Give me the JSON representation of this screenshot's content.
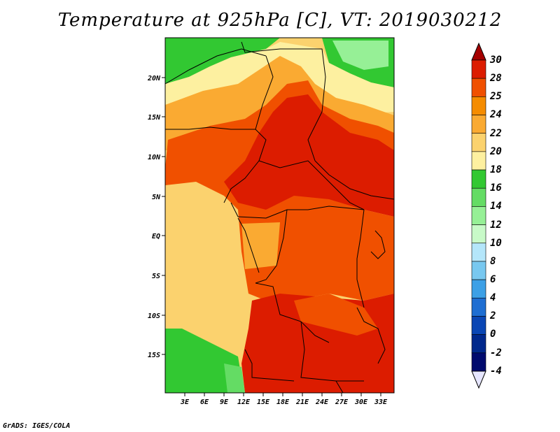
{
  "title": "Temperature at 925hPa [C], VT: 2019030212",
  "credit": "GrADS: IGES/COLA",
  "map": {
    "lat_labels": [
      "20N",
      "15N",
      "10N",
      "5N",
      "EQ",
      "5S",
      "10S",
      "15S"
    ],
    "lon_labels": [
      "3E",
      "6E",
      "9E",
      "12E",
      "15E",
      "18E",
      "21E",
      "24E",
      "27E",
      "30E",
      "33E"
    ]
  },
  "colorbar": {
    "labels": [
      "30",
      "28",
      "25",
      "24",
      "22",
      "20",
      "18",
      "16",
      "14",
      "12",
      "10",
      "8",
      "6",
      "4",
      "2",
      "0",
      "-2",
      "-4"
    ],
    "colors": [
      "#a50000",
      "#dc1c00",
      "#f05000",
      "#f58c00",
      "#faaa32",
      "#fbd26e",
      "#fdf0a0",
      "#32c832",
      "#64dc64",
      "#96f096",
      "#c8fac8",
      "#b4e6fa",
      "#78c8f0",
      "#3ca0e6",
      "#1e6ed2",
      "#0a46b4",
      "#00288c",
      "#000a6e",
      "#e6e6ff"
    ]
  }
}
